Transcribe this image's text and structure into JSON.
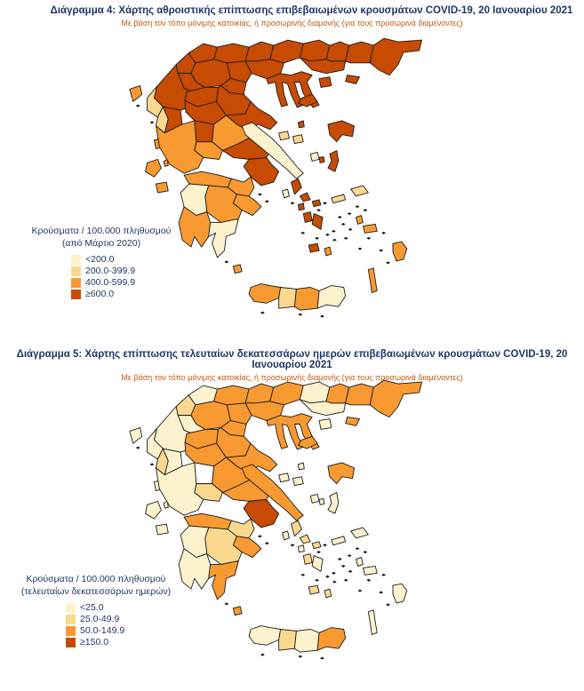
{
  "palette": {
    "b1": "#FCF2CD",
    "b2": "#FBD88F",
    "b3": "#F89931",
    "b4": "#C74B03",
    "none": "#FFFFFF",
    "border": "#1A1A1A",
    "title_text": "#1F3864",
    "subtitle_text": "#C45911",
    "legend_text": "#1F3864"
  },
  "maps": [
    {
      "id": "map1",
      "title": "Διάγραμμα 4: Χάρτης αθροιστικής επίπτωσης επιβεβαιωμένων κρουσμάτων COVID-19, 20 Ιανουαρίου 2021",
      "subtitle": "Με βάση τον τόπο μόνιμης κατοικίας, ή προσωρινής διαμονής (για τους προσωρινά διαμένοντες)",
      "legend_title_line1": "Κρούσματα / 100.000 πληθυσμού",
      "legend_title_line2": "(από Μάρτιο 2020)",
      "legend": [
        {
          "label": "<200.0",
          "category": "b1"
        },
        {
          "label": "200.0-399.9",
          "category": "b2"
        },
        {
          "label": "400.0-599.9",
          "category": "b3"
        },
        {
          "label": "≥600.0",
          "category": "b4"
        }
      ]
    },
    {
      "id": "map2",
      "title": "Διάγραμμα 5: Χάρτης επίπτωσης τελευταίων δεκατεσσάρων ημερών επιβεβαιωμένων κρουσμάτων COVID-19, 20 Ιανουαρίου 2021",
      "subtitle": "Με βάση τον τόπο μόνιμης κατοικίας, ή προσωρινής διαμονής (για τους προσωρινά διαμένοντες)",
      "legend_title_line1": "Κρούσματα / 100.000 πληθυσμού",
      "legend_title_line2": "(τελευταίων δεκατεσσάρων ημερών)",
      "legend": [
        {
          "label": "<25.0",
          "category": "b1"
        },
        {
          "label": "25.0-49.9",
          "category": "b2"
        },
        {
          "label": "50.0-149.9",
          "category": "b3"
        },
        {
          "label": "≥150.0",
          "category": "b4"
        }
      ]
    }
  ],
  "chart_data": {
    "type": "choropleth",
    "geography": "Greece regional units",
    "value_unit": "cases per 100,000 population",
    "map1_bins": {
      "b1": "<200.0",
      "b2": "200.0-399.9",
      "b3": "400.0-599.9",
      "b4": "≥600.0"
    },
    "map2_bins": {
      "b1": "<25.0",
      "b2": "25.0-49.9",
      "b3": "50.0-149.9",
      "b4": "≥150.0",
      "none": "no colour"
    },
    "regions": [
      {
        "id": "florina",
        "map1": "b4",
        "map2": "b1"
      },
      {
        "id": "kastoria",
        "map1": "b4",
        "map2": "b2"
      },
      {
        "id": "grevena",
        "map1": "b4",
        "map2": "b1"
      },
      {
        "id": "kozani",
        "map1": "b4",
        "map2": "b3"
      },
      {
        "id": "pella",
        "map1": "b4",
        "map2": "b3"
      },
      {
        "id": "imathia",
        "map1": "b4",
        "map2": "b3"
      },
      {
        "id": "pieria",
        "map1": "b4",
        "map2": "b3"
      },
      {
        "id": "kilkis",
        "map1": "b4",
        "map2": "b3"
      },
      {
        "id": "thessaloniki",
        "map1": "b4",
        "map2": "b3"
      },
      {
        "id": "serres",
        "map1": "b4",
        "map2": "b3"
      },
      {
        "id": "drama",
        "map1": "b4",
        "map2": "b1"
      },
      {
        "id": "kavala",
        "map1": "b4",
        "map2": "b1"
      },
      {
        "id": "xanthi",
        "map1": "b4",
        "map2": "b3"
      },
      {
        "id": "rodopi",
        "map1": "b4",
        "map2": "b3"
      },
      {
        "id": "evros",
        "map1": "b4",
        "map2": "b3"
      },
      {
        "id": "thasos",
        "map1": "b4",
        "map2": "b1"
      },
      {
        "id": "samothraki",
        "map1": "b4",
        "map2": "b3"
      },
      {
        "id": "chalkidiki",
        "map1": "b4",
        "map2": "b3"
      },
      {
        "id": "ioannina",
        "map1": "b4",
        "map2": "b1"
      },
      {
        "id": "thesprotia",
        "map1": "b2",
        "map2": "b1"
      },
      {
        "id": "preveza",
        "map1": "b2",
        "map2": "b2"
      },
      {
        "id": "arta",
        "map1": "b4",
        "map2": "b1"
      },
      {
        "id": "corfu",
        "map1": "b3",
        "map2": "b1"
      },
      {
        "id": "lefkada",
        "map1": "b3",
        "map2": "b1"
      },
      {
        "id": "kefalonia",
        "map1": "b3",
        "map2": "b1"
      },
      {
        "id": "ithaki",
        "map1": "b3",
        "map2": "b1"
      },
      {
        "id": "zakynthos",
        "map1": "b3",
        "map2": "b1"
      },
      {
        "id": "trikala",
        "map1": "b4",
        "map2": "b3"
      },
      {
        "id": "larissa",
        "map1": "b4",
        "map2": "b3"
      },
      {
        "id": "karditsa",
        "map1": "b4",
        "map2": "b3"
      },
      {
        "id": "magnesia",
        "map1": "b4",
        "map2": "b3"
      },
      {
        "id": "skiathos",
        "map1": "b2",
        "map2": "b1"
      },
      {
        "id": "skopelos",
        "map1": "b2",
        "map2": "b1"
      },
      {
        "id": "aitoloakarnania",
        "map1": "b3",
        "map2": "b1"
      },
      {
        "id": "evrytania",
        "map1": "b4",
        "map2": "none"
      },
      {
        "id": "fthiotida",
        "map1": "b3",
        "map2": "b3"
      },
      {
        "id": "fokida",
        "map1": "b3",
        "map2": "b2"
      },
      {
        "id": "viotia",
        "map1": "b4",
        "map2": "b3"
      },
      {
        "id": "evia",
        "map1": "b1",
        "map2": "b3"
      },
      {
        "id": "skyros",
        "map1": "b1",
        "map2": "b1"
      },
      {
        "id": "attica",
        "map1": "b4",
        "map2": "b4"
      },
      {
        "id": "achaia",
        "map1": "b3",
        "map2": "b3"
      },
      {
        "id": "korinthia",
        "map1": "b3",
        "map2": "b2"
      },
      {
        "id": "argolida",
        "map1": "b3",
        "map2": "b3"
      },
      {
        "id": "arkadia",
        "map1": "b3",
        "map2": "b2"
      },
      {
        "id": "ilia",
        "map1": "b1",
        "map2": "b1"
      },
      {
        "id": "messinia",
        "map1": "b3",
        "map2": "b1"
      },
      {
        "id": "lakonia",
        "map1": "b1",
        "map2": "b3"
      },
      {
        "id": "kythira",
        "map1": "b3",
        "map2": "b3"
      },
      {
        "id": "limnos",
        "map1": "b4",
        "map2": "b3"
      },
      {
        "id": "agios_efstratios",
        "map1": "b4",
        "map2": "b1"
      },
      {
        "id": "lesvos",
        "map1": "b4",
        "map2": "b3"
      },
      {
        "id": "chios",
        "map1": "b4",
        "map2": "b1"
      },
      {
        "id": "psara",
        "map1": "b4",
        "map2": "b1"
      },
      {
        "id": "samos",
        "map1": "b2",
        "map2": "b1"
      },
      {
        "id": "ikaria",
        "map1": "b2",
        "map2": "b1"
      },
      {
        "id": "kea",
        "map1": "b1",
        "map2": "b1"
      },
      {
        "id": "andros",
        "map1": "b4",
        "map2": "b2"
      },
      {
        "id": "tinos",
        "map1": "b4",
        "map2": "b2"
      },
      {
        "id": "mykonos",
        "map1": "b4",
        "map2": "b2"
      },
      {
        "id": "syros",
        "map1": "b4",
        "map2": "b1"
      },
      {
        "id": "paros",
        "map1": "b4",
        "map2": "b2"
      },
      {
        "id": "naxos",
        "map1": "b4",
        "map2": "b1"
      },
      {
        "id": "milos",
        "map1": "b4",
        "map2": "b2"
      },
      {
        "id": "santorini",
        "map1": "b3",
        "map2": "b2"
      },
      {
        "id": "kalymnos",
        "map1": "b3",
        "map2": "b1"
      },
      {
        "id": "kos",
        "map1": "b3",
        "map2": "b1"
      },
      {
        "id": "rhodes",
        "map1": "b3",
        "map2": "b1"
      },
      {
        "id": "karpathos",
        "map1": "b3",
        "map2": "b1"
      },
      {
        "id": "chania",
        "map1": "b3",
        "map2": "b1"
      },
      {
        "id": "rethymno",
        "map1": "b2",
        "map2": "b2"
      },
      {
        "id": "heraklio",
        "map1": "b3",
        "map2": "b1"
      },
      {
        "id": "lasithi",
        "map1": "b1",
        "map2": "b3"
      }
    ]
  }
}
